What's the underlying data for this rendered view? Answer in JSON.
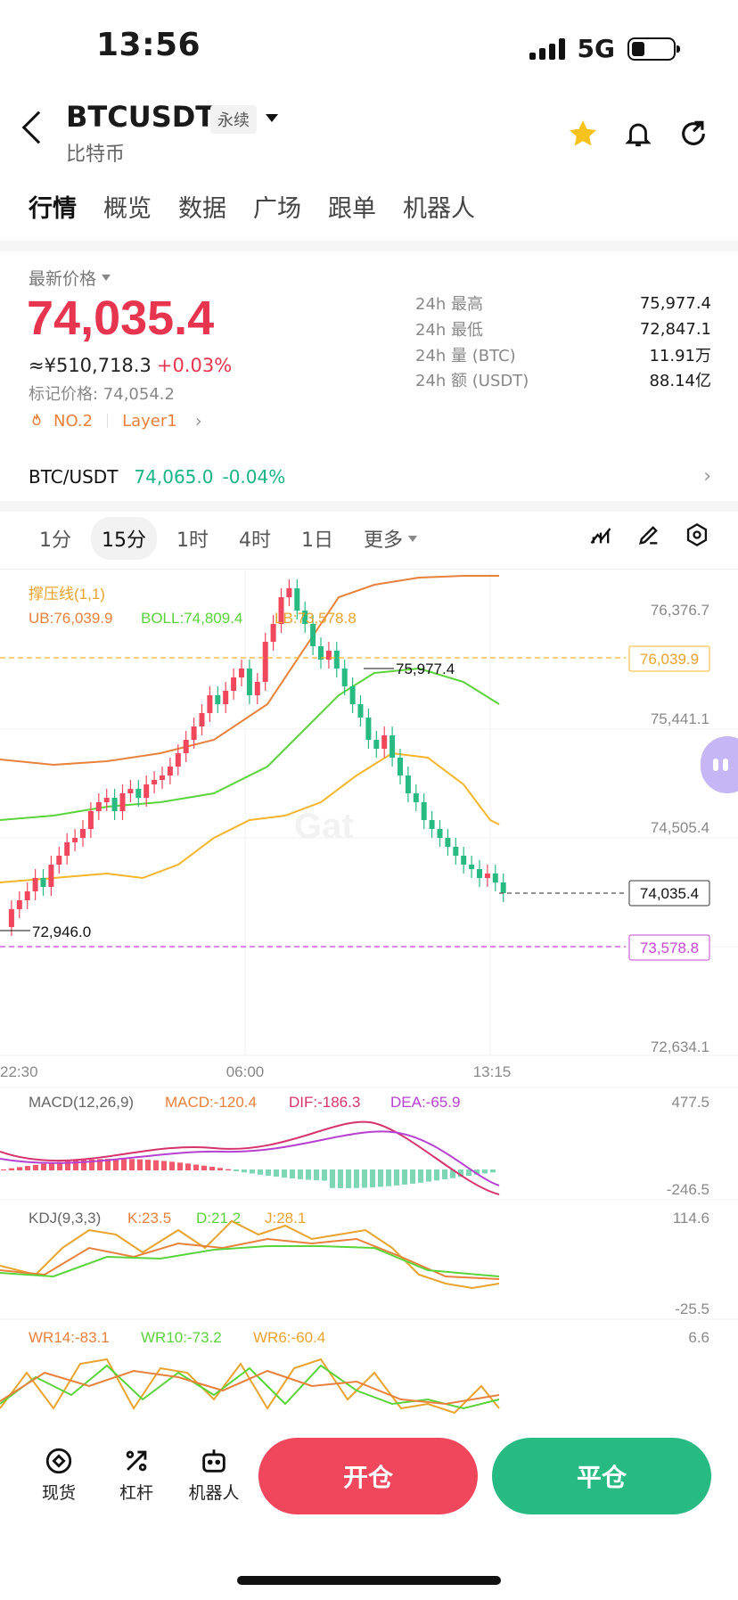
{
  "status": {
    "time": "13:56",
    "network": "5G"
  },
  "header": {
    "symbol": "BTCUSDT",
    "badge": "永续",
    "subtitle": "比特币"
  },
  "tabs": [
    "行情",
    "概览",
    "数据",
    "广场",
    "跟单",
    "机器人"
  ],
  "price": {
    "label": "最新价格",
    "last": "74,035.4",
    "cny": "≈¥510,718.3",
    "change": "+0.03%",
    "mark": "标记价格: 74,054.2",
    "rank": "NO.2",
    "tag": "Layer1"
  },
  "stats": [
    {
      "label": "24h  最高",
      "value": "75,977.4"
    },
    {
      "label": "24h  最低",
      "value": "72,847.1"
    },
    {
      "label": "24h  量 (BTC)",
      "value": "11.91万"
    },
    {
      "label": "24h  额 (USDT)",
      "value": "88.14亿"
    }
  ],
  "spot": {
    "pair": "BTC/USDT",
    "price": "74,065.0",
    "change": "-0.04%"
  },
  "timeframes": [
    "1分",
    "15分",
    "1时",
    "4时",
    "1日",
    "更多"
  ],
  "chart": {
    "indicator_title": "撑压线(1,1)",
    "ub": "UB:76,039.9",
    "boll": "BOLL:74,809.4",
    "lb": "LB:73,578.8",
    "y_ticks": [
      "76,376.7",
      "75,441.1",
      "74,505.4",
      "73,578.8",
      "72,634.1"
    ],
    "tag_ub": "76,039.9",
    "tag_last": "74,035.4",
    "tag_lb": "73,578.8",
    "high_label": "75,977.4",
    "low_label": "72,946.0",
    "x_ticks": [
      "22:30",
      "06:00",
      "13:15"
    ],
    "colors": {
      "up": "#f0475d",
      "down": "#27ba82",
      "ub": "#f5b52b",
      "boll": "#5bd33b",
      "lb": "#f5b52b",
      "mid": "#e8813b"
    }
  },
  "macd": {
    "title": "MACD(12,26,9)",
    "macd": "MACD:-120.4",
    "dif": "DIF:-186.3",
    "dea": "DEA:-65.9",
    "max": "477.5",
    "min": "-246.5"
  },
  "kdj": {
    "title": "KDJ(9,3,3)",
    "k": "K:23.5",
    "d": "D:21.2",
    "j": "J:28.1",
    "max": "114.6",
    "min": "-25.5"
  },
  "wr": {
    "wr14": "WR14:-83.1",
    "wr10": "WR10:-73.2",
    "wr6": "WR6:-60.4",
    "max": "6.6"
  },
  "bottom": {
    "nav": [
      "现货",
      "杠杆",
      "机器人"
    ],
    "open": "开仓",
    "close": "平仓"
  }
}
